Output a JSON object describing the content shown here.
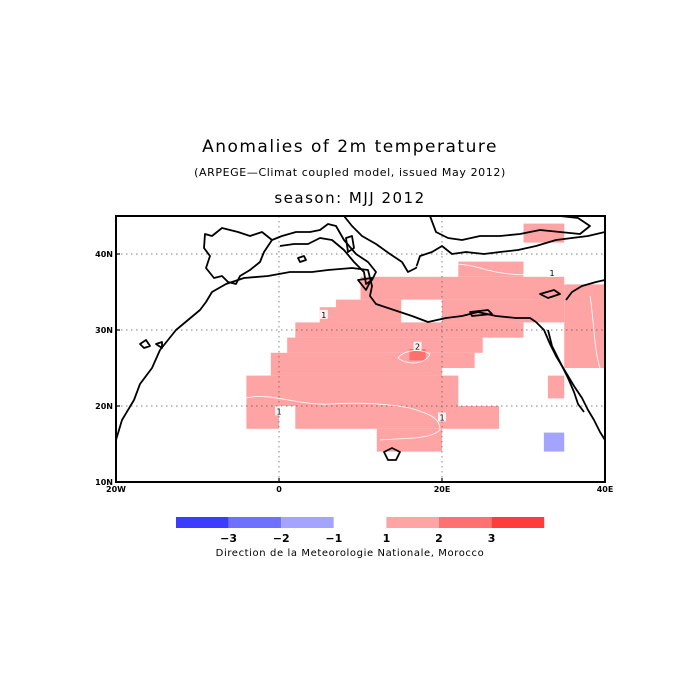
{
  "title": "Anomalies of 2m temperature",
  "subtitle": "(ARPEGE—Climat coupled model, issued May 2012)",
  "season": "season: MJJ 2012",
  "credit": "Direction de la Meteorologie Nationale, Morocco",
  "map": {
    "lon_range": [
      -20,
      40
    ],
    "lat_range": [
      10,
      45
    ],
    "grid": true,
    "lon_ticks": [
      {
        "v": -20,
        "label": "20W"
      },
      {
        "v": 0,
        "label": "0"
      },
      {
        "v": 20,
        "label": "20E"
      },
      {
        "v": 40,
        "label": "40E"
      }
    ],
    "lat_ticks": [
      {
        "v": 10,
        "label": "10N"
      },
      {
        "v": 20,
        "label": "20N"
      },
      {
        "v": 30,
        "label": "30N"
      },
      {
        "v": 40,
        "label": "40N"
      }
    ],
    "contour_labels": [
      {
        "text": "1",
        "lon": 5.5,
        "lat": 32
      },
      {
        "text": "2",
        "lon": 17,
        "lat": 27.8
      },
      {
        "text": "1",
        "lon": 20,
        "lat": 18.5
      },
      {
        "text": "1",
        "lon": 0,
        "lat": 19.3
      },
      {
        "text": "1",
        "lon": 33.5,
        "lat": 37.5
      }
    ]
  },
  "anomaly_cells": [
    {
      "lon": [
        30,
        35
      ],
      "lat": [
        41.5,
        44
      ]
    },
    {
      "lon": [
        22,
        30
      ],
      "lat": [
        37,
        39
      ]
    },
    {
      "lon": [
        10,
        35
      ],
      "lat": [
        34,
        37
      ]
    },
    {
      "lon": [
        35,
        40
      ],
      "lat": [
        25,
        36
      ]
    },
    {
      "lon": [
        7,
        15
      ],
      "lat": [
        31,
        34
      ]
    },
    {
      "lon": [
        20,
        35
      ],
      "lat": [
        31,
        34
      ]
    },
    {
      "lon": [
        5,
        7.5
      ],
      "lat": [
        30,
        33
      ]
    },
    {
      "lon": [
        2,
        30
      ],
      "lat": [
        29,
        31
      ]
    },
    {
      "lon": [
        1,
        25
      ],
      "lat": [
        27,
        29
      ]
    },
    {
      "lon": [
        -1,
        24
      ],
      "lat": [
        25,
        27
      ]
    },
    {
      "lon": [
        -1,
        20
      ],
      "lat": [
        24,
        25
      ]
    },
    {
      "lon": [
        -4,
        22
      ],
      "lat": [
        20,
        24
      ]
    },
    {
      "lon": [
        -4,
        0
      ],
      "lat": [
        17,
        20
      ]
    },
    {
      "lon": [
        2,
        27
      ],
      "lat": [
        17,
        20
      ]
    },
    {
      "lon": [
        12,
        20
      ],
      "lat": [
        14,
        17
      ]
    },
    {
      "lon": [
        33,
        35
      ],
      "lat": [
        21,
        24
      ]
    },
    {
      "lon": [
        16,
        18
      ],
      "lat": [
        26,
        27.5
      ],
      "level": 2
    },
    {
      "lon": [
        32.5,
        35
      ],
      "lat": [
        14,
        16.5
      ],
      "level": -1
    }
  ],
  "legend": [
    {
      "label": "-3",
      "color": "#3c3cff"
    },
    {
      "label": "-2",
      "color": "#7070ff"
    },
    {
      "label": "-1",
      "color": "#a4a4ff"
    },
    {
      "label": "",
      "color": "#ffffff"
    },
    {
      "label": "1",
      "color": "#ffa4a4"
    },
    {
      "label": "2",
      "color": "#ff7070"
    },
    {
      "label": "3",
      "color": "#ff3c3c"
    }
  ]
}
